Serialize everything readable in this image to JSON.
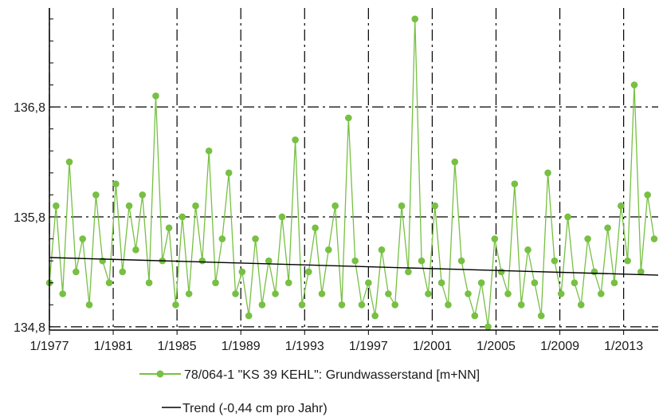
{
  "chart_data": {
    "type": "line",
    "title": "",
    "xlabel": "",
    "ylabel": "",
    "x_ticks": [
      "1/1977",
      "1/1981",
      "1/1985",
      "1/1989",
      "1/1993",
      "1/1997",
      "1/2001",
      "1/2005",
      "1/2009",
      "1/2013"
    ],
    "y_ticks": [
      "134,8",
      "135,8",
      "136,8"
    ],
    "xlim": [
      "1977-01",
      "2015-03"
    ],
    "ylim": [
      134.77,
      137.7
    ],
    "grid": true,
    "legend_position": "bottom",
    "series": [
      {
        "name": "78/064-1 \"KS 39 KEHL\": Grundwasserstand [m+NN]",
        "color": "#77c043",
        "marker": "circle",
        "x": [
          "1977-01",
          "1977-06",
          "1977-11",
          "1978-04",
          "1978-09",
          "1979-02",
          "1979-07",
          "1979-12",
          "1980-05",
          "1980-10",
          "1981-03",
          "1981-08",
          "1982-01",
          "1982-06",
          "1982-11",
          "1983-04",
          "1983-09",
          "1984-02",
          "1984-07",
          "1984-12",
          "1985-05",
          "1985-10",
          "1986-03",
          "1986-08",
          "1987-01",
          "1987-06",
          "1987-11",
          "1988-04",
          "1988-09",
          "1989-02",
          "1989-07",
          "1989-12",
          "1990-05",
          "1990-10",
          "1991-03",
          "1991-08",
          "1992-01",
          "1992-06",
          "1992-11",
          "1993-04",
          "1993-09",
          "1994-02",
          "1994-07",
          "1994-12",
          "1995-05",
          "1995-10",
          "1996-03",
          "1996-08",
          "1997-01",
          "1997-06",
          "1997-11",
          "1998-04",
          "1998-09",
          "1999-02",
          "1999-07",
          "1999-12",
          "2000-05",
          "2000-10",
          "2001-03",
          "2001-08",
          "2002-01",
          "2002-06",
          "2002-11",
          "2003-04",
          "2003-09",
          "2004-02",
          "2004-07",
          "2004-12",
          "2005-05",
          "2005-10",
          "2006-03",
          "2006-08",
          "2007-01",
          "2007-06",
          "2007-11",
          "2008-04",
          "2008-09",
          "2009-02",
          "2009-07",
          "2009-12",
          "2010-05",
          "2010-10",
          "2011-03",
          "2011-08",
          "2012-01",
          "2012-06",
          "2012-11",
          "2013-04",
          "2013-09",
          "2014-02",
          "2014-07",
          "2014-12"
        ],
        "y": [
          135.2,
          135.9,
          135.1,
          136.3,
          135.3,
          135.6,
          135.0,
          136.0,
          135.4,
          135.2,
          136.1,
          135.3,
          135.9,
          135.5,
          136.0,
          135.2,
          136.9,
          135.4,
          135.7,
          135.0,
          135.8,
          135.1,
          135.9,
          135.4,
          136.4,
          135.2,
          135.6,
          136.2,
          135.1,
          135.3,
          134.9,
          135.6,
          135.0,
          135.4,
          135.1,
          135.8,
          135.2,
          136.5,
          135.0,
          135.3,
          135.7,
          135.1,
          135.5,
          135.9,
          135.0,
          136.7,
          135.4,
          135.0,
          135.2,
          134.9,
          135.5,
          135.1,
          135.0,
          135.9,
          135.3,
          137.6,
          135.4,
          135.1,
          135.9,
          135.2,
          135.0,
          136.3,
          135.4,
          135.1,
          134.9,
          135.2,
          134.8,
          135.6,
          135.3,
          135.1,
          136.1,
          135.0,
          135.5,
          135.2,
          134.9,
          136.2,
          135.4,
          135.1,
          135.8,
          135.2,
          135.0,
          135.6,
          135.3,
          135.1,
          135.7,
          135.2,
          135.9,
          135.4,
          137.0,
          135.3,
          136.0,
          135.6
        ]
      },
      {
        "name": "Trend (-0,44 cm pro Jahr)",
        "color": "#000000",
        "x": [
          "1977-01",
          "2015-03"
        ],
        "y": [
          135.43,
          135.27
        ]
      }
    ]
  }
}
